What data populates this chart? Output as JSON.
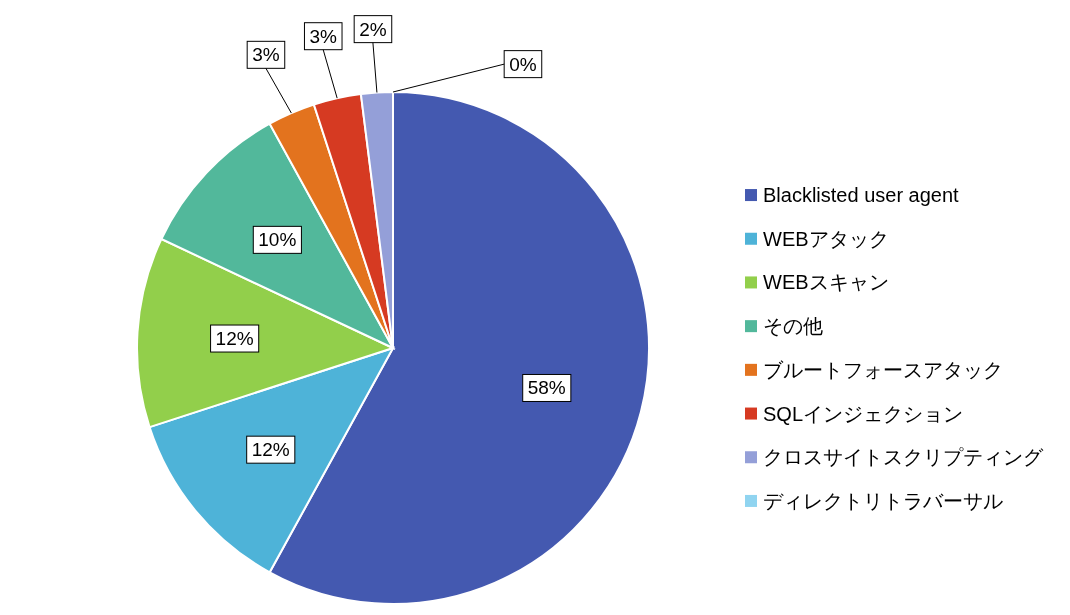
{
  "chart_data": {
    "type": "pie",
    "categories": [
      "Blacklisted user agent",
      "WEBアタック",
      "WEBスキャン",
      "その他",
      "ブルートフォースアタック",
      "SQLインジェクション",
      "クロスサイトスクリプティング",
      "ディレクトリトラバーサル"
    ],
    "values": [
      58,
      12,
      12,
      10,
      3,
      3,
      2,
      0
    ],
    "value_labels": [
      "58%",
      "12%",
      "12%",
      "10%",
      "3%",
      "3%",
      "2%",
      "0%"
    ],
    "colors": [
      "#4459b0",
      "#4eb3d8",
      "#92cf4b",
      "#52b89b",
      "#e3731e",
      "#d63a22",
      "#949fd8",
      "#90d4f0"
    ],
    "legend": "right"
  }
}
